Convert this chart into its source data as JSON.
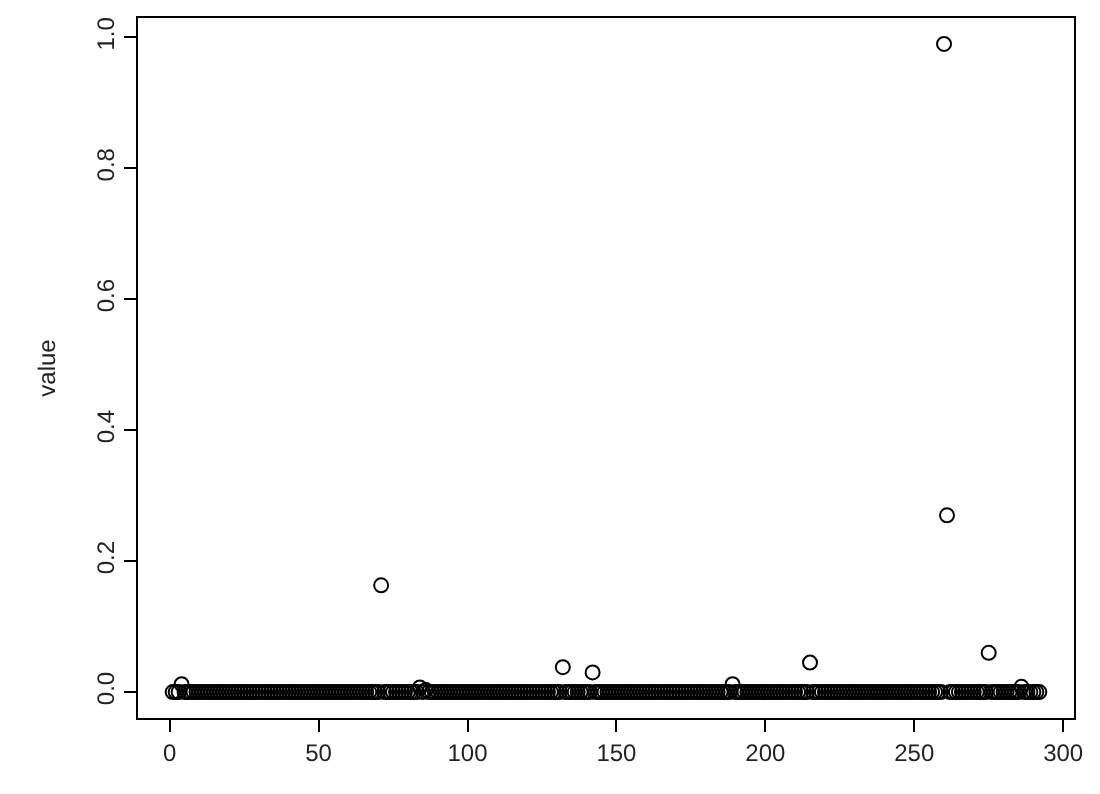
{
  "chart_data": {
    "type": "scatter",
    "ylabel": "value",
    "marker": "circle",
    "legend": false,
    "xlim": [
      -10.64,
      303.64
    ],
    "ylim": [
      -0.0396,
      1.0296
    ],
    "xticks": [
      0,
      50,
      100,
      150,
      200,
      250,
      300
    ],
    "yticks": [
      {
        "value": 0,
        "label": "0.0"
      },
      {
        "value": 0.2,
        "label": "0.2"
      },
      {
        "value": 0.4,
        "label": "0.4"
      },
      {
        "value": 0.6,
        "label": "0.6"
      },
      {
        "value": 0.8,
        "label": "0.8"
      },
      {
        "value": 1,
        "label": "1.0"
      }
    ],
    "series": [
      {
        "color": "#000000",
        "x": [
          1,
          2,
          3,
          4,
          5,
          6,
          7,
          8,
          9,
          10,
          11,
          12,
          13,
          14,
          15,
          16,
          17,
          18,
          19,
          20,
          21,
          22,
          23,
          24,
          25,
          26,
          27,
          28,
          29,
          30,
          31,
          32,
          33,
          34,
          35,
          36,
          37,
          38,
          39,
          40,
          41,
          42,
          43,
          44,
          45,
          46,
          47,
          48,
          49,
          50,
          51,
          52,
          53,
          54,
          55,
          56,
          57,
          58,
          59,
          60,
          61,
          62,
          63,
          64,
          65,
          66,
          67,
          68,
          69,
          70,
          71,
          72,
          73,
          74,
          75,
          76,
          77,
          78,
          79,
          80,
          81,
          82,
          83,
          84,
          85,
          86,
          87,
          88,
          89,
          90,
          91,
          92,
          93,
          94,
          95,
          96,
          97,
          98,
          99,
          100,
          101,
          102,
          103,
          104,
          105,
          106,
          107,
          108,
          109,
          110,
          111,
          112,
          113,
          114,
          115,
          116,
          117,
          118,
          119,
          120,
          121,
          122,
          123,
          124,
          125,
          126,
          127,
          128,
          129,
          130,
          131,
          132,
          133,
          134,
          135,
          136,
          137,
          138,
          139,
          140,
          141,
          142,
          143,
          144,
          145,
          146,
          147,
          148,
          149,
          150,
          151,
          152,
          153,
          154,
          155,
          156,
          157,
          158,
          159,
          160,
          161,
          162,
          163,
          164,
          165,
          166,
          167,
          168,
          169,
          170,
          171,
          172,
          173,
          174,
          175,
          176,
          177,
          178,
          179,
          180,
          181,
          182,
          183,
          184,
          185,
          186,
          187,
          188,
          189,
          190,
          191,
          192,
          193,
          194,
          195,
          196,
          197,
          198,
          199,
          200,
          201,
          202,
          203,
          204,
          205,
          206,
          207,
          208,
          209,
          210,
          211,
          212,
          213,
          214,
          215,
          216,
          217,
          218,
          219,
          220,
          221,
          222,
          223,
          224,
          225,
          226,
          227,
          228,
          229,
          230,
          231,
          232,
          233,
          234,
          235,
          236,
          237,
          238,
          239,
          240,
          241,
          242,
          243,
          244,
          245,
          246,
          247,
          248,
          249,
          250,
          251,
          252,
          253,
          254,
          255,
          256,
          257,
          258,
          259,
          260,
          261,
          262,
          263,
          264,
          265,
          266,
          267,
          268,
          269,
          270,
          271,
          272,
          273,
          274,
          275,
          276,
          277,
          278,
          279,
          280,
          281,
          282,
          283,
          284,
          285,
          286,
          287,
          288,
          289,
          290,
          291,
          292
        ],
        "values": [
          0,
          0,
          0,
          0.012,
          0,
          0,
          0,
          0,
          0,
          0,
          0,
          0,
          0,
          0,
          0,
          0,
          0,
          0,
          0,
          0,
          0,
          0,
          0,
          0,
          0,
          0,
          0,
          0,
          0,
          0,
          0,
          0,
          0,
          0,
          0,
          0,
          0,
          0,
          0,
          0,
          0,
          0,
          0,
          0,
          0,
          0,
          0,
          0,
          0,
          0,
          0,
          0,
          0,
          0,
          0,
          0,
          0,
          0,
          0,
          0,
          0,
          0,
          0,
          0,
          0,
          0,
          0,
          0,
          0,
          0,
          0.163,
          0,
          0,
          0,
          0,
          0,
          0,
          0,
          0,
          0,
          0,
          0,
          0,
          0.007,
          0,
          0.003,
          0,
          0,
          0,
          0,
          0,
          0,
          0,
          0,
          0,
          0,
          0,
          0,
          0,
          0,
          0,
          0,
          0,
          0,
          0,
          0,
          0,
          0,
          0,
          0,
          0,
          0,
          0,
          0,
          0,
          0,
          0,
          0,
          0,
          0,
          0,
          0,
          0,
          0,
          0,
          0,
          0,
          0,
          0,
          0,
          0,
          0.038,
          0,
          0,
          0,
          0,
          0,
          0,
          0,
          0,
          0,
          0.03,
          0,
          0,
          0,
          0,
          0,
          0,
          0,
          0,
          0,
          0,
          0,
          0,
          0,
          0,
          0,
          0,
          0,
          0,
          0,
          0,
          0,
          0,
          0,
          0,
          0,
          0,
          0,
          0,
          0,
          0,
          0,
          0,
          0,
          0,
          0,
          0,
          0,
          0,
          0,
          0,
          0,
          0,
          0,
          0,
          0,
          0,
          0.012,
          0,
          0,
          0,
          0,
          0,
          0,
          0,
          0,
          0,
          0,
          0,
          0,
          0,
          0,
          0,
          0,
          0,
          0,
          0,
          0,
          0,
          0,
          0,
          0,
          0,
          0.045,
          0,
          0,
          0,
          0,
          0,
          0,
          0,
          0,
          0,
          0,
          0,
          0,
          0,
          0,
          0,
          0,
          0,
          0,
          0,
          0,
          0,
          0,
          0,
          0,
          0,
          0,
          0,
          0,
          0,
          0,
          0,
          0,
          0,
          0,
          0,
          0,
          0,
          0,
          0,
          0,
          0,
          0,
          0,
          0,
          0.99,
          0.27,
          0,
          0,
          0,
          0,
          0,
          0,
          0,
          0,
          0,
          0,
          0,
          0,
          0,
          0.06,
          0,
          0,
          0,
          0,
          0,
          0,
          0,
          0,
          0,
          0,
          0.008,
          0,
          0,
          0,
          0,
          0,
          0
        ]
      }
    ]
  }
}
